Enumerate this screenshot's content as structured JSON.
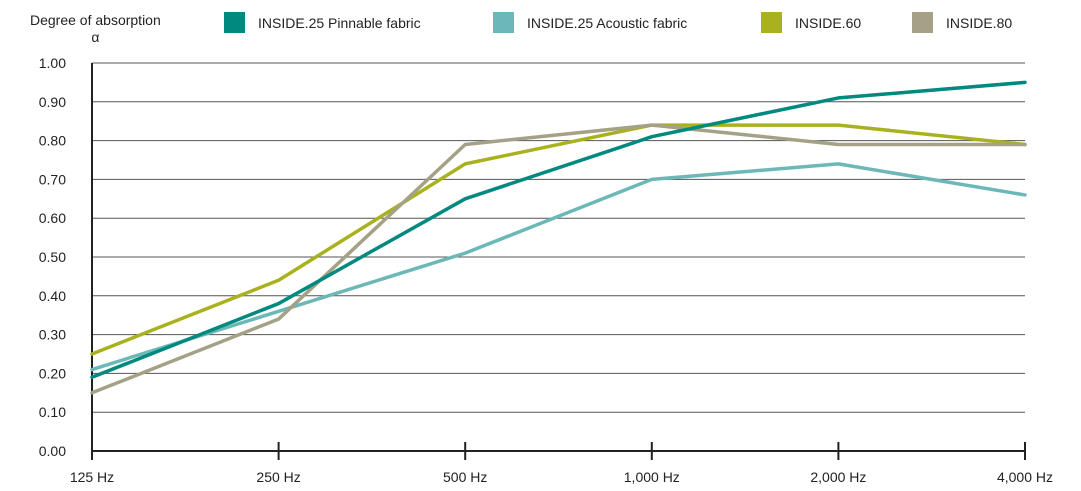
{
  "chart_data": {
    "type": "line",
    "ylabel": "Degree of absorption",
    "ylabel_symbol": "α",
    "categories": [
      "125 Hz",
      "250 Hz",
      "500 Hz",
      "1,000 Hz",
      "2,000 Hz",
      "4,000 Hz"
    ],
    "ylim": [
      0,
      1.0
    ],
    "yticks": [
      "0.00",
      "0.10",
      "0.20",
      "0.30",
      "0.40",
      "0.50",
      "0.60",
      "0.70",
      "0.80",
      "0.90",
      "1.00"
    ],
    "grid": true,
    "legend_position": "top",
    "series": [
      {
        "name": "INSIDE.25 Pinnable fabric",
        "color": "#00897e",
        "values": [
          0.19,
          0.38,
          0.65,
          0.81,
          0.91,
          0.95
        ]
      },
      {
        "name": "INSIDE.25 Acoustic fabric",
        "color": "#6cb8b8",
        "values": [
          0.21,
          0.36,
          0.51,
          0.7,
          0.74,
          0.66
        ]
      },
      {
        "name": "INSIDE.60",
        "color": "#a9b21e",
        "values": [
          0.25,
          0.44,
          0.74,
          0.84,
          0.84,
          0.79
        ]
      },
      {
        "name": "INSIDE.80",
        "color": "#a4a186",
        "values": [
          0.15,
          0.34,
          0.79,
          0.84,
          0.79,
          0.79
        ]
      }
    ]
  }
}
